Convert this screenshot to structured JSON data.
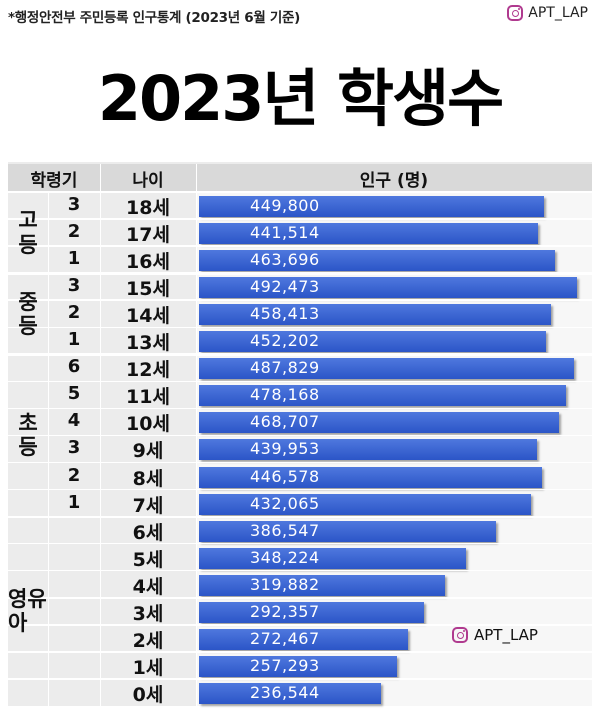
{
  "source_note": "*행정안전부 주민등록 인구통계 (2023년 6월 기준)",
  "watermark": "APT_LAP",
  "title": "2023년 학생수",
  "colors": {
    "bar": "#2f5bd0",
    "table_bg": "#ececec",
    "header_bg": "#d9d9d9"
  },
  "chart_data": {
    "type": "bar",
    "orientation": "horizontal",
    "title": "2023년 학생수",
    "column_headers": [
      "학령기",
      "나이",
      "인구 (명)"
    ],
    "categories": [
      "18세",
      "17세",
      "16세",
      "15세",
      "14세",
      "13세",
      "12세",
      "11세",
      "10세",
      "9세",
      "8세",
      "7세",
      "6세",
      "5세",
      "4세",
      "3세",
      "2세",
      "1세",
      "0세"
    ],
    "grades": [
      "3",
      "2",
      "1",
      "3",
      "2",
      "1",
      "6",
      "5",
      "4",
      "3",
      "2",
      "1",
      "",
      "",
      "",
      "",
      "",
      "",
      ""
    ],
    "groups": [
      {
        "name": "고등",
        "label_chars": [
          "고",
          "등"
        ],
        "count": 3
      },
      {
        "name": "중등",
        "label_chars": [
          "중",
          "등"
        ],
        "count": 3
      },
      {
        "name": "초등",
        "label_chars": [
          "초",
          "등"
        ],
        "count": 6
      },
      {
        "name": "영유아",
        "label_chars": [
          "영유아"
        ],
        "count": 7
      }
    ],
    "values": [
      449800,
      441514,
      463696,
      492473,
      458413,
      452202,
      487829,
      478168,
      468707,
      439953,
      446578,
      432065,
      386547,
      348224,
      319882,
      292357,
      272467,
      257293,
      236544
    ],
    "value_labels": [
      "449,800",
      "441,514",
      "463,696",
      "492,473",
      "458,413",
      "452,202",
      "487,829",
      "478,168",
      "468,707",
      "439,953",
      "446,578",
      "432,065",
      "386,547",
      "348,224",
      "319,882",
      "292,357",
      "272,467",
      "257,293",
      "236,544"
    ],
    "xlim": [
      0,
      500000
    ],
    "grid": false,
    "legend": "none"
  }
}
